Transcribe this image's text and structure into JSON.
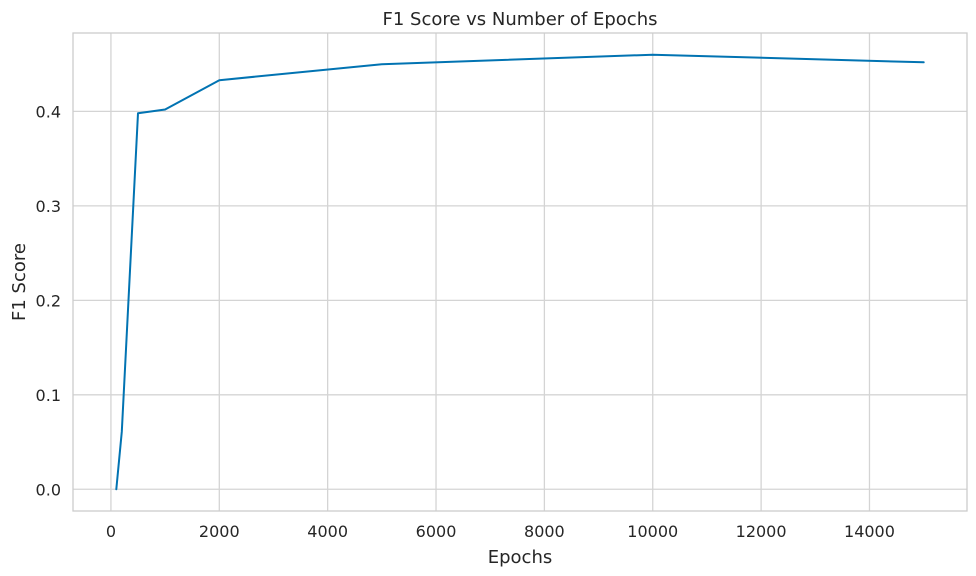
{
  "chart_data": {
    "type": "line",
    "title": "F1 Score vs Number of Epochs",
    "xlabel": "Epochs",
    "ylabel": "F1 Score",
    "xlim": [
      -700,
      15800
    ],
    "ylim": [
      -0.023,
      0.483
    ],
    "xticks": [
      0,
      2000,
      4000,
      6000,
      8000,
      10000,
      12000,
      14000
    ],
    "yticks": [
      0.0,
      0.1,
      0.2,
      0.3,
      0.4
    ],
    "grid": true,
    "line_color": "#0173b2",
    "series": [
      {
        "x": [
          100,
          200,
          500,
          1000,
          2000,
          5000,
          10000,
          15000
        ],
        "y": [
          0.0,
          0.061,
          0.398,
          0.402,
          0.433,
          0.45,
          0.46,
          0.452
        ]
      }
    ]
  }
}
